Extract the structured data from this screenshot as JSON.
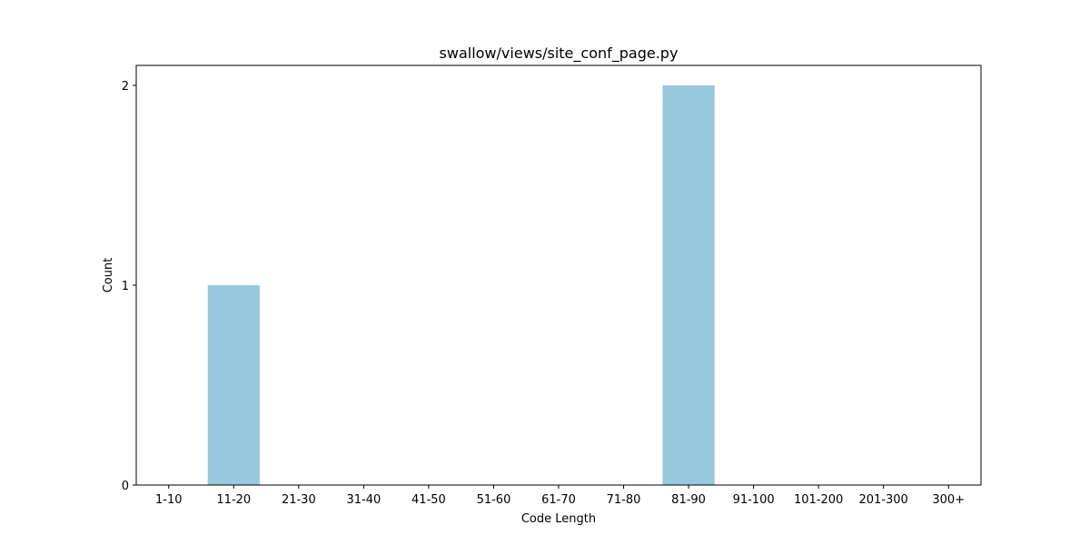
{
  "chart_data": {
    "type": "bar",
    "title": "swallow/views/site_conf_page.py",
    "xlabel": "Code Length",
    "ylabel": "Count",
    "categories": [
      "1-10",
      "11-20",
      "21-30",
      "31-40",
      "41-50",
      "51-60",
      "61-70",
      "71-80",
      "81-90",
      "91-100",
      "101-200",
      "201-300",
      "300+"
    ],
    "values": [
      0,
      1,
      0,
      0,
      0,
      0,
      0,
      0,
      2,
      0,
      0,
      0,
      0
    ],
    "yticks": [
      "0",
      "1",
      "2"
    ],
    "ylim": [
      0,
      2.1
    ],
    "grid": false,
    "bar_color": "#96c9dd"
  }
}
